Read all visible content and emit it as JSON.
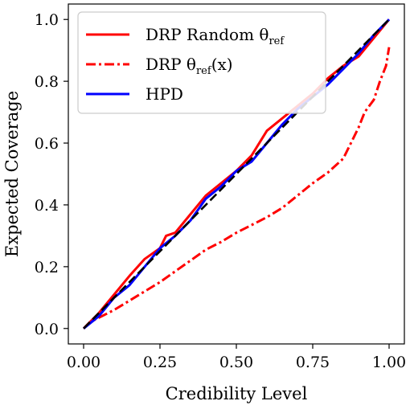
{
  "chart_data": {
    "type": "line",
    "xlabel": "Credibility Level",
    "ylabel": "Expected Coverage",
    "xlim": [
      -0.05,
      1.05
    ],
    "ylim": [
      -0.05,
      1.05
    ],
    "xticks": [
      "0.00",
      "0.25",
      "0.50",
      "0.75",
      "1.00"
    ],
    "yticks": [
      "0.0",
      "0.2",
      "0.4",
      "0.6",
      "0.8",
      "1.0"
    ],
    "legend_position": "upper-left",
    "grid": false,
    "series": [
      {
        "name": "DRP Random θref",
        "legend_main": "DRP Random θ",
        "legend_sub": "ref",
        "legend_suffix": "",
        "color": "#ff0000",
        "style": "solid",
        "x": [
          0.0,
          0.05,
          0.1,
          0.15,
          0.2,
          0.25,
          0.27,
          0.3,
          0.35,
          0.4,
          0.45,
          0.5,
          0.55,
          0.6,
          0.65,
          0.7,
          0.75,
          0.8,
          0.85,
          0.9,
          0.95,
          1.0
        ],
        "y": [
          0.0,
          0.05,
          0.11,
          0.17,
          0.225,
          0.26,
          0.3,
          0.31,
          0.37,
          0.43,
          0.47,
          0.51,
          0.56,
          0.64,
          0.68,
          0.72,
          0.76,
          0.81,
          0.85,
          0.88,
          0.94,
          1.0
        ]
      },
      {
        "name": "DRP θref(x)",
        "legend_main": "DRP θ",
        "legend_sub": "ref",
        "legend_suffix": "(x)",
        "color": "#ff0000",
        "style": "dashdot",
        "x": [
          0.0,
          0.02,
          0.05,
          0.1,
          0.15,
          0.2,
          0.25,
          0.3,
          0.35,
          0.4,
          0.45,
          0.5,
          0.55,
          0.6,
          0.65,
          0.7,
          0.75,
          0.8,
          0.85,
          0.88,
          0.9,
          0.92,
          0.95,
          0.97,
          0.99,
          1.0
        ],
        "y": [
          0.0,
          0.02,
          0.035,
          0.06,
          0.09,
          0.12,
          0.15,
          0.185,
          0.22,
          0.255,
          0.28,
          0.31,
          0.335,
          0.36,
          0.39,
          0.43,
          0.47,
          0.505,
          0.55,
          0.61,
          0.65,
          0.7,
          0.74,
          0.8,
          0.85,
          0.91
        ]
      },
      {
        "name": "HPD",
        "legend_main": "HPD",
        "legend_sub": "",
        "legend_suffix": "",
        "color": "#0000ff",
        "style": "solid",
        "x": [
          0.0,
          0.05,
          0.1,
          0.15,
          0.2,
          0.25,
          0.3,
          0.35,
          0.4,
          0.45,
          0.5,
          0.55,
          0.6,
          0.65,
          0.7,
          0.75,
          0.8,
          0.85,
          0.9,
          0.95,
          1.0
        ],
        "y": [
          0.0,
          0.04,
          0.1,
          0.14,
          0.2,
          0.26,
          0.3,
          0.35,
          0.42,
          0.46,
          0.51,
          0.54,
          0.6,
          0.66,
          0.71,
          0.75,
          0.79,
          0.84,
          0.89,
          0.95,
          1.0
        ]
      },
      {
        "name": "",
        "color": "#000000",
        "style": "dashed",
        "in_legend": false,
        "x": [
          0.0,
          1.0
        ],
        "y": [
          0.0,
          1.0
        ]
      }
    ]
  }
}
